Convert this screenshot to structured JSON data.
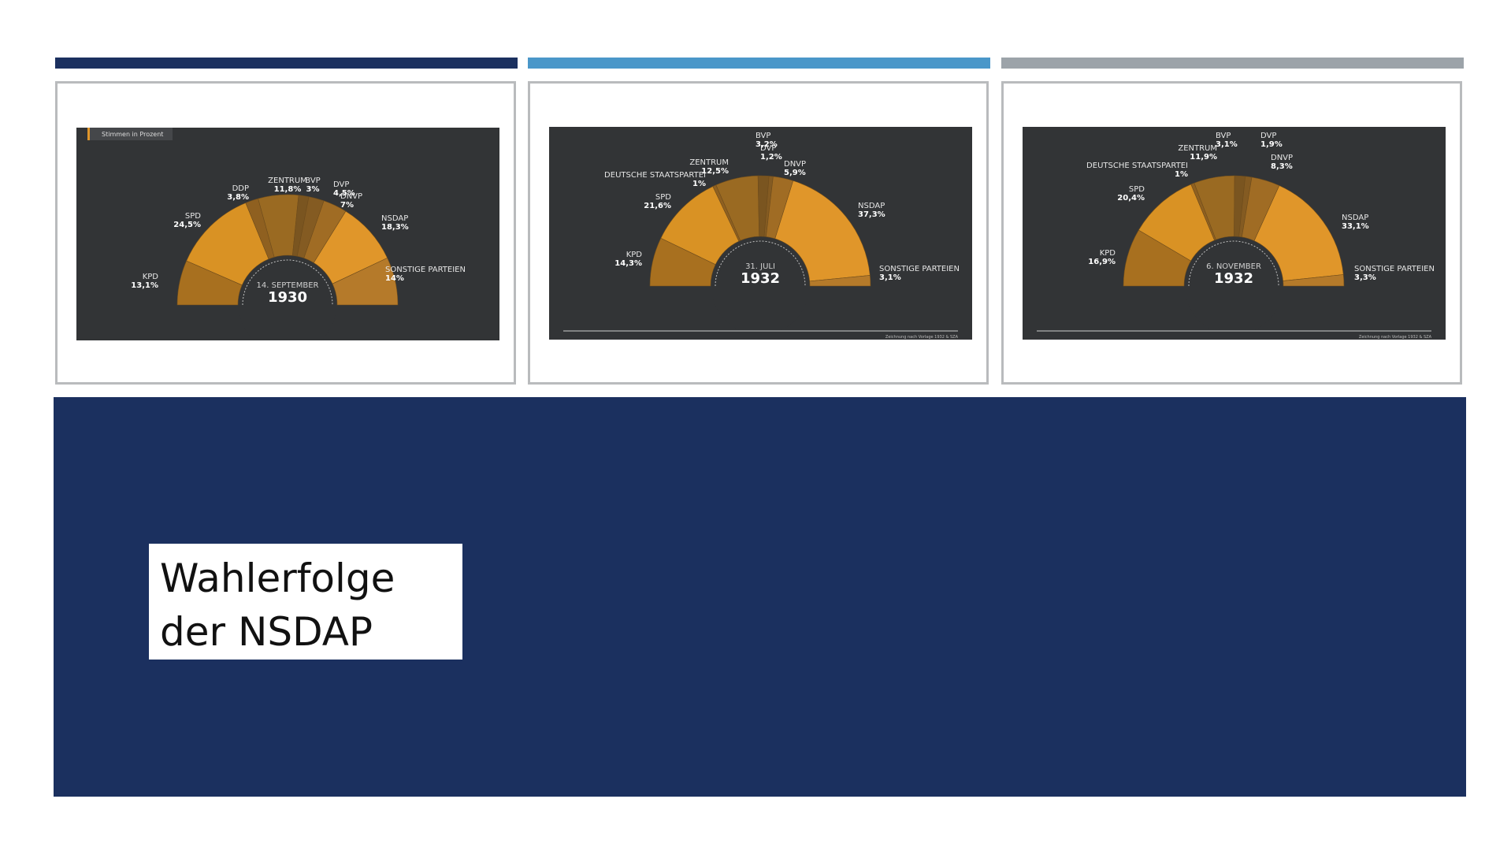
{
  "accent_colors": {
    "bar1": "#1b305f",
    "bar2": "#4a97c9",
    "bar3": "#9ca3a9",
    "banner": "#1b305f"
  },
  "title": {
    "line1": "Wahlerfolge",
    "line2": "der NSDAP"
  },
  "chart_data": [
    {
      "type": "pie",
      "subtype": "half-donut",
      "badge": "Stimmen in Prozent",
      "date_line": "14. SEPTEMBER",
      "year": "1930",
      "footer": "",
      "slices": [
        {
          "label": "KPD",
          "value": 13.1,
          "display": "13,1%"
        },
        {
          "label": "SPD",
          "value": 24.5,
          "display": "24,5%"
        },
        {
          "label": "DDP",
          "value": 3.8,
          "display": "3,8%"
        },
        {
          "label": "ZENTRUM",
          "value": 11.8,
          "display": "11,8%"
        },
        {
          "label": "BVP",
          "value": 3,
          "display": "3%"
        },
        {
          "label": "DVP",
          "value": 4.5,
          "display": "4,5%"
        },
        {
          "label": "DNVP",
          "value": 7,
          "display": "7%"
        },
        {
          "label": "NSDAP",
          "value": 18.3,
          "display": "18,3%"
        },
        {
          "label": "SONSTIGE PARTEIEN",
          "value": 14,
          "display": "14%"
        }
      ]
    },
    {
      "type": "pie",
      "subtype": "half-donut",
      "badge": "",
      "date_line": "31. JULI",
      "year": "1932",
      "footer": "Zeichnung nach Vorlage 1932 & SZA",
      "slices": [
        {
          "label": "KPD",
          "value": 14.3,
          "display": "14,3%"
        },
        {
          "label": "SPD",
          "value": 21.6,
          "display": "21,6%"
        },
        {
          "label": "DEUTSCHE STAATSPARTEI",
          "value": 1,
          "display": "1%"
        },
        {
          "label": "ZENTRUM",
          "value": 12.5,
          "display": "12,5%"
        },
        {
          "label": "BVP",
          "value": 3.2,
          "display": "3,2%"
        },
        {
          "label": "DVP",
          "value": 1.2,
          "display": "1,2%"
        },
        {
          "label": "DNVP",
          "value": 5.9,
          "display": "5,9%"
        },
        {
          "label": "NSDAP",
          "value": 37.3,
          "display": "37,3%"
        },
        {
          "label": "SONSTIGE PARTEIEN",
          "value": 3.1,
          "display": "3,1%"
        }
      ]
    },
    {
      "type": "pie",
      "subtype": "half-donut",
      "badge": "",
      "date_line": "6. NOVEMBER",
      "year": "1932",
      "footer": "Zeichnung nach Vorlage 1932 & SZA",
      "slices": [
        {
          "label": "KPD",
          "value": 16.9,
          "display": "16,9%"
        },
        {
          "label": "SPD",
          "value": 20.4,
          "display": "20,4%"
        },
        {
          "label": "DEUTSCHE STAATSPARTEI",
          "value": 1,
          "display": "1%"
        },
        {
          "label": "ZENTRUM",
          "value": 11.9,
          "display": "11,9%"
        },
        {
          "label": "BVP",
          "value": 3.1,
          "display": "3,1%"
        },
        {
          "label": "DVP",
          "value": 1.9,
          "display": "1,9%"
        },
        {
          "label": "DNVP",
          "value": 8.3,
          "display": "8,3%"
        },
        {
          "label": "NSDAP",
          "value": 33.1,
          "display": "33,1%"
        },
        {
          "label": "SONSTIGE PARTEIEN",
          "value": 3.3,
          "display": "3,3%"
        }
      ]
    }
  ]
}
